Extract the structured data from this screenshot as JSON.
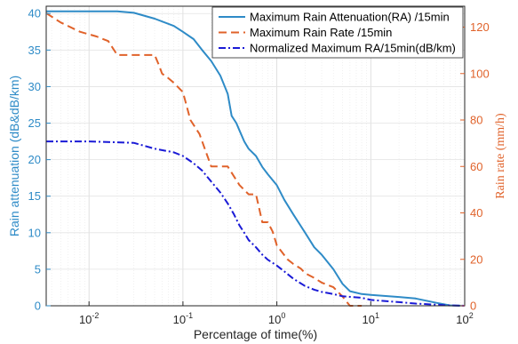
{
  "chart_data": {
    "type": "line",
    "xlabel": "Percentage of time(%)",
    "ylabel_left": "Rain attenuation (dB&dB/km)",
    "ylabel_right": "Rain rate (mm/h)",
    "xscale": "log",
    "xlim": [
      0.0035,
      100
    ],
    "ylim_left": [
      0,
      41
    ],
    "ylim_right": [
      0,
      129
    ],
    "x_ticks": [
      {
        "base": "10",
        "exp": "-2",
        "value": 0.01
      },
      {
        "base": "10",
        "exp": "-1",
        "value": 0.1
      },
      {
        "base": "10",
        "exp": "0",
        "value": 1
      },
      {
        "base": "10",
        "exp": "1",
        "value": 10
      },
      {
        "base": "10",
        "exp": "2",
        "value": 100
      }
    ],
    "y_left_ticks": [
      0,
      5,
      10,
      15,
      20,
      25,
      30,
      35,
      40
    ],
    "y_right_ticks": [
      0,
      20,
      40,
      60,
      80,
      100,
      120
    ],
    "grid": true,
    "legend_position": "top-right",
    "colors": {
      "left_axis": "#2e8bc7",
      "right_axis": "#e0622a",
      "series_ra": "#2e8bc7",
      "series_rate": "#e0622a",
      "series_norm": "#1a1ad6"
    },
    "series": [
      {
        "name": "Maximum  Rain Attenuation(RA) /15min",
        "axis": "left",
        "style": "solid",
        "points": [
          [
            0.0035,
            40.3
          ],
          [
            0.01,
            40.3
          ],
          [
            0.02,
            40.3
          ],
          [
            0.03,
            40.1
          ],
          [
            0.05,
            39.3
          ],
          [
            0.08,
            38.3
          ],
          [
            0.1,
            37.5
          ],
          [
            0.13,
            36.5
          ],
          [
            0.16,
            35.0
          ],
          [
            0.2,
            33.5
          ],
          [
            0.25,
            31.5
          ],
          [
            0.3,
            29.0
          ],
          [
            0.33,
            26.0
          ],
          [
            0.37,
            25.0
          ],
          [
            0.4,
            24.0
          ],
          [
            0.45,
            22.5
          ],
          [
            0.5,
            21.5
          ],
          [
            0.6,
            20.5
          ],
          [
            0.7,
            19.0
          ],
          [
            0.8,
            18.0
          ],
          [
            1.0,
            16.5
          ],
          [
            1.2,
            14.5
          ],
          [
            1.5,
            12.5
          ],
          [
            2.0,
            10.0
          ],
          [
            2.5,
            8.0
          ],
          [
            3.0,
            7.0
          ],
          [
            4.0,
            5.0
          ],
          [
            5.0,
            3.0
          ],
          [
            6.0,
            2.0
          ],
          [
            8.0,
            1.6
          ],
          [
            10.0,
            1.5
          ],
          [
            20.0,
            1.2
          ],
          [
            30.0,
            1.0
          ],
          [
            50.0,
            0.4
          ],
          [
            70.0,
            0.05
          ],
          [
            100.0,
            0.0
          ]
        ]
      },
      {
        "name": "Maximum  Rain Rate /15min",
        "axis": "right",
        "style": "dashed",
        "points": [
          [
            0.0035,
            126
          ],
          [
            0.005,
            122
          ],
          [
            0.008,
            118
          ],
          [
            0.012,
            116
          ],
          [
            0.016,
            114
          ],
          [
            0.02,
            108
          ],
          [
            0.03,
            108
          ],
          [
            0.05,
            108
          ],
          [
            0.055,
            104
          ],
          [
            0.06,
            100
          ],
          [
            0.07,
            98
          ],
          [
            0.08,
            96
          ],
          [
            0.1,
            92
          ],
          [
            0.12,
            80
          ],
          [
            0.15,
            74
          ],
          [
            0.2,
            60
          ],
          [
            0.25,
            60
          ],
          [
            0.3,
            60
          ],
          [
            0.4,
            52
          ],
          [
            0.5,
            48
          ],
          [
            0.6,
            48
          ],
          [
            0.7,
            36
          ],
          [
            0.8,
            36
          ],
          [
            0.9,
            32
          ],
          [
            1.0,
            26
          ],
          [
            1.3,
            20
          ],
          [
            1.5,
            18
          ],
          [
            1.8,
            16
          ],
          [
            2.0,
            14
          ],
          [
            2.5,
            12
          ],
          [
            3.0,
            10
          ],
          [
            4.0,
            8
          ],
          [
            5.0,
            4
          ],
          [
            6.0,
            0
          ],
          [
            8.0,
            0
          ]
        ]
      },
      {
        "name": "Normalized Maximum RA/15min(dB/km)",
        "axis": "left",
        "style": "dashdot",
        "points": [
          [
            0.0035,
            22.5
          ],
          [
            0.01,
            22.5
          ],
          [
            0.03,
            22.3
          ],
          [
            0.05,
            21.5
          ],
          [
            0.08,
            21.0
          ],
          [
            0.1,
            20.5
          ],
          [
            0.13,
            19.5
          ],
          [
            0.16,
            18.5
          ],
          [
            0.2,
            17.0
          ],
          [
            0.25,
            15.5
          ],
          [
            0.3,
            14.0
          ],
          [
            0.35,
            12.5
          ],
          [
            0.4,
            11.0
          ],
          [
            0.45,
            10.0
          ],
          [
            0.5,
            9.0
          ],
          [
            0.6,
            8.0
          ],
          [
            0.7,
            7.0
          ],
          [
            0.8,
            6.3
          ],
          [
            1.0,
            5.5
          ],
          [
            1.2,
            4.7
          ],
          [
            1.5,
            3.7
          ],
          [
            2.0,
            2.7
          ],
          [
            2.5,
            2.2
          ],
          [
            3.0,
            1.9
          ],
          [
            4.0,
            1.6
          ],
          [
            5.0,
            1.3
          ],
          [
            8.0,
            1.1
          ],
          [
            10.0,
            0.8
          ],
          [
            20.0,
            0.5
          ],
          [
            30.0,
            0.3
          ],
          [
            50.0,
            0.15
          ],
          [
            70.0,
            0.05
          ],
          [
            100.0,
            0.0
          ]
        ]
      }
    ]
  }
}
